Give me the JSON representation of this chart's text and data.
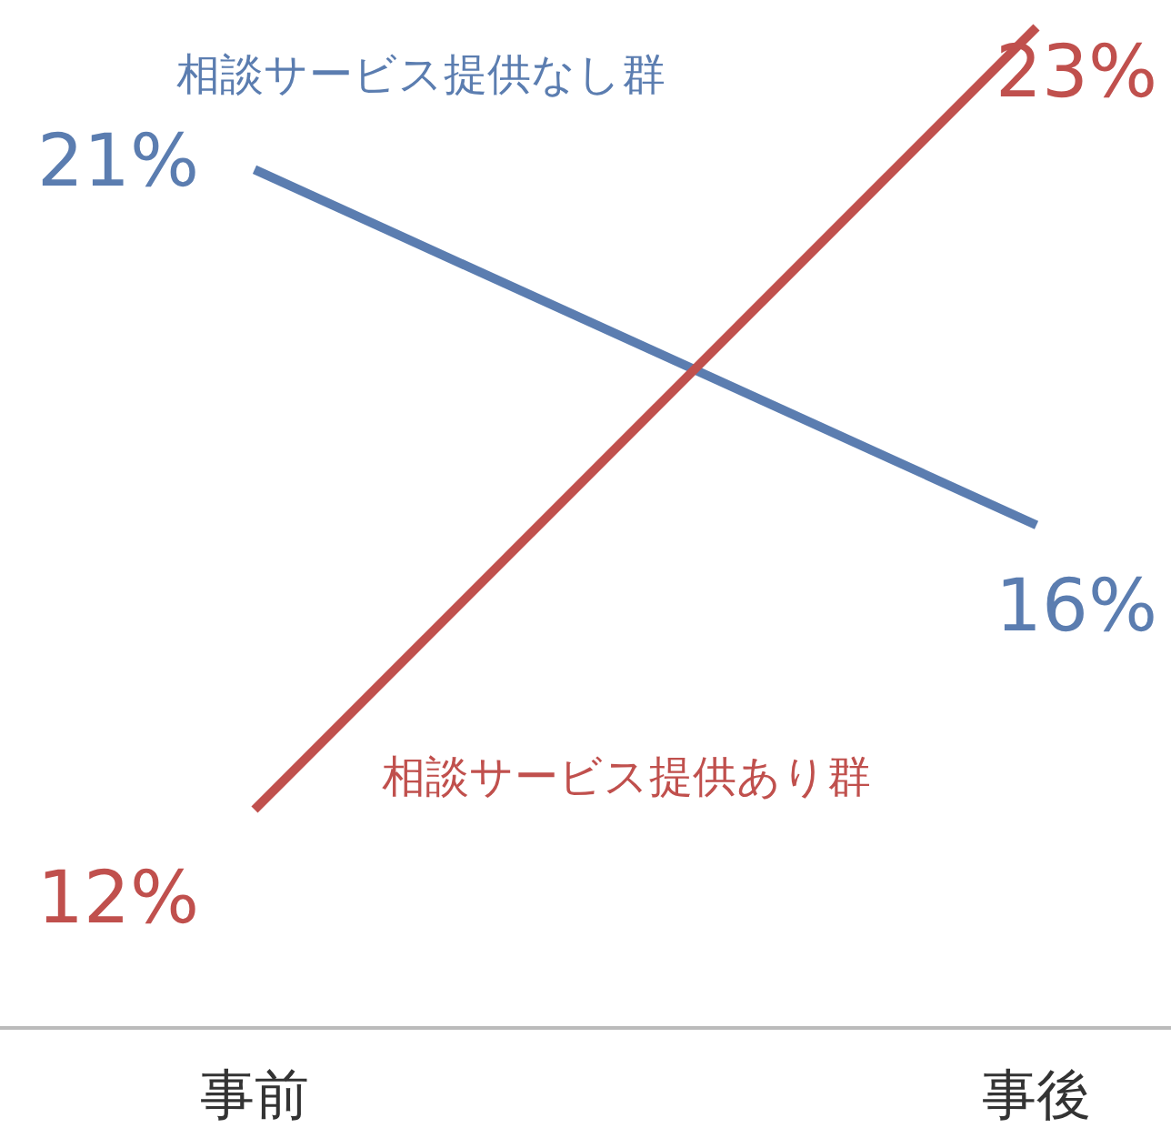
{
  "chart_data": {
    "type": "line",
    "categories": [
      "事前",
      "事後"
    ],
    "series": [
      {
        "name": "相談サービス提供なし群",
        "color": "#5b7db0",
        "values": [
          21,
          16
        ],
        "value_labels": [
          "21%",
          "16%"
        ]
      },
      {
        "name": "相談サービス提供あり群",
        "color": "#c0504d",
        "values": [
          12,
          23
        ],
        "value_labels": [
          "12%",
          "23%"
        ]
      }
    ]
  }
}
